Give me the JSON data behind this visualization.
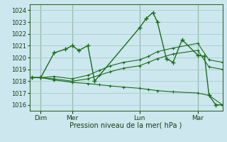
{
  "bg_color": "#cce8ee",
  "grid_color": "#aacccc",
  "line_color": "#1a6b1a",
  "marker_color": "#1a6b1a",
  "xlabel": "Pression niveau de la mer( hPa )",
  "ylim": [
    1015.5,
    1024.5
  ],
  "yticks": [
    1016,
    1017,
    1018,
    1019,
    1020,
    1021,
    1022,
    1023,
    1024
  ],
  "xlim": [
    -2,
    170
  ],
  "xtick_labels": [
    "Dim",
    "Mer",
    "Lun",
    "Mar"
  ],
  "xtick_positions": [
    8,
    36,
    96,
    148
  ],
  "vline_positions": [
    8,
    36,
    96,
    148
  ],
  "series": [
    {
      "x": [
        0,
        8,
        20,
        30,
        36,
        42,
        50,
        56,
        96,
        102,
        108,
        112,
        120,
        126,
        134,
        148,
        154,
        158,
        164,
        170
      ],
      "y": [
        1018.3,
        1018.3,
        1020.4,
        1020.7,
        1021.0,
        1020.6,
        1021.0,
        1018.0,
        1022.5,
        1023.3,
        1023.8,
        1023.0,
        1019.9,
        1019.6,
        1021.5,
        1020.2,
        1020.1,
        1016.8,
        1016.0,
        1016.0
      ]
    },
    {
      "x": [
        0,
        8,
        20,
        36,
        50,
        60,
        70,
        82,
        96,
        104,
        112,
        126,
        148,
        158,
        170
      ],
      "y": [
        1018.3,
        1018.3,
        1018.4,
        1018.2,
        1018.5,
        1018.9,
        1019.3,
        1019.6,
        1019.8,
        1020.1,
        1020.5,
        1020.8,
        1021.2,
        1019.8,
        1019.6
      ]
    },
    {
      "x": [
        0,
        8,
        20,
        36,
        50,
        60,
        70,
        82,
        96,
        104,
        112,
        126,
        148,
        158,
        170
      ],
      "y": [
        1018.3,
        1018.3,
        1018.2,
        1018.0,
        1018.2,
        1018.5,
        1018.8,
        1019.1,
        1019.3,
        1019.6,
        1019.9,
        1020.3,
        1020.6,
        1019.2,
        1019.0
      ]
    },
    {
      "x": [
        0,
        8,
        20,
        36,
        50,
        60,
        70,
        82,
        96,
        104,
        112,
        126,
        148,
        158,
        170
      ],
      "y": [
        1018.3,
        1018.3,
        1018.1,
        1017.9,
        1017.8,
        1017.7,
        1017.6,
        1017.5,
        1017.4,
        1017.3,
        1017.2,
        1017.1,
        1017.0,
        1016.8,
        1016.0
      ]
    }
  ]
}
